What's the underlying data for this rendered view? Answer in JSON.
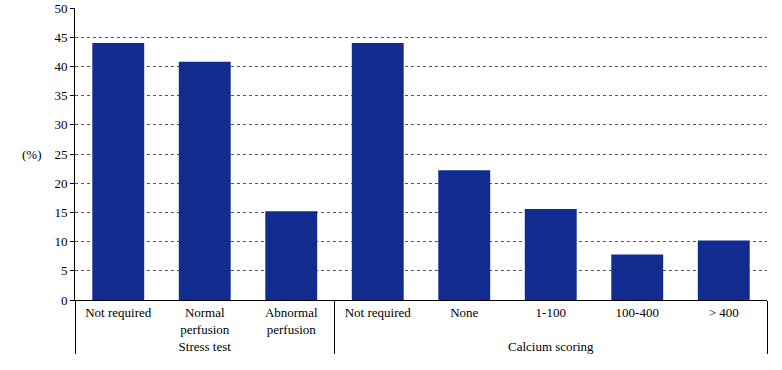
{
  "chart_data": {
    "type": "bar",
    "y_label": "(%)",
    "groups": [
      {
        "label": "Stress test",
        "categories": [
          "Not required",
          "Normal perfusion",
          "Abnormal perfusion"
        ],
        "values": [
          44,
          40.8,
          15.2
        ]
      },
      {
        "label": "Calcium scoring",
        "categories": [
          "Not required",
          "None",
          "1-100",
          "100-400",
          "> 400"
        ],
        "values": [
          44,
          22.2,
          15.6,
          7.8,
          10.2
        ]
      }
    ],
    "color": "#112b8f",
    "ylim": [
      0,
      50
    ],
    "yticks": [
      0,
      5,
      10,
      15,
      20,
      25,
      30,
      35,
      40,
      45,
      50
    ],
    "grid": true
  }
}
